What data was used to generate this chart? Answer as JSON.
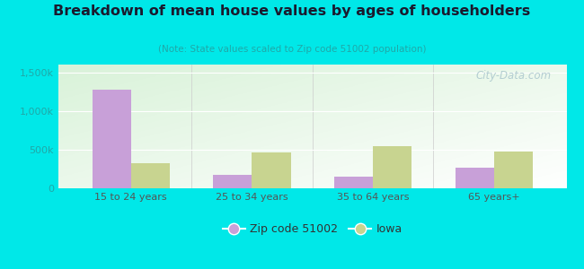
{
  "title": "Breakdown of mean house values by ages of householders",
  "subtitle": "(Note: State values scaled to Zip code 51002 population)",
  "categories": [
    "15 to 24 years",
    "25 to 34 years",
    "35 to 64 years",
    "65 years+"
  ],
  "zip_values": [
    1280000,
    170000,
    145000,
    270000
  ],
  "iowa_values": [
    330000,
    460000,
    540000,
    480000
  ],
  "zip_color": "#c8a0d8",
  "iowa_color": "#c8d490",
  "background_color": "#00e8e8",
  "ylim": [
    0,
    1600000
  ],
  "yticks": [
    0,
    500000,
    1000000,
    1500000
  ],
  "ytick_labels": [
    "0",
    "500k",
    "1,000k",
    "1,500k"
  ],
  "legend_zip_label": "Zip code 51002",
  "legend_iowa_label": "Iowa",
  "bar_width": 0.32,
  "watermark": "City-Data.com",
  "title_color": "#1a1a2e",
  "subtitle_color": "#20a8a8",
  "tick_color": "#20a8a8",
  "xtick_color": "#555555"
}
